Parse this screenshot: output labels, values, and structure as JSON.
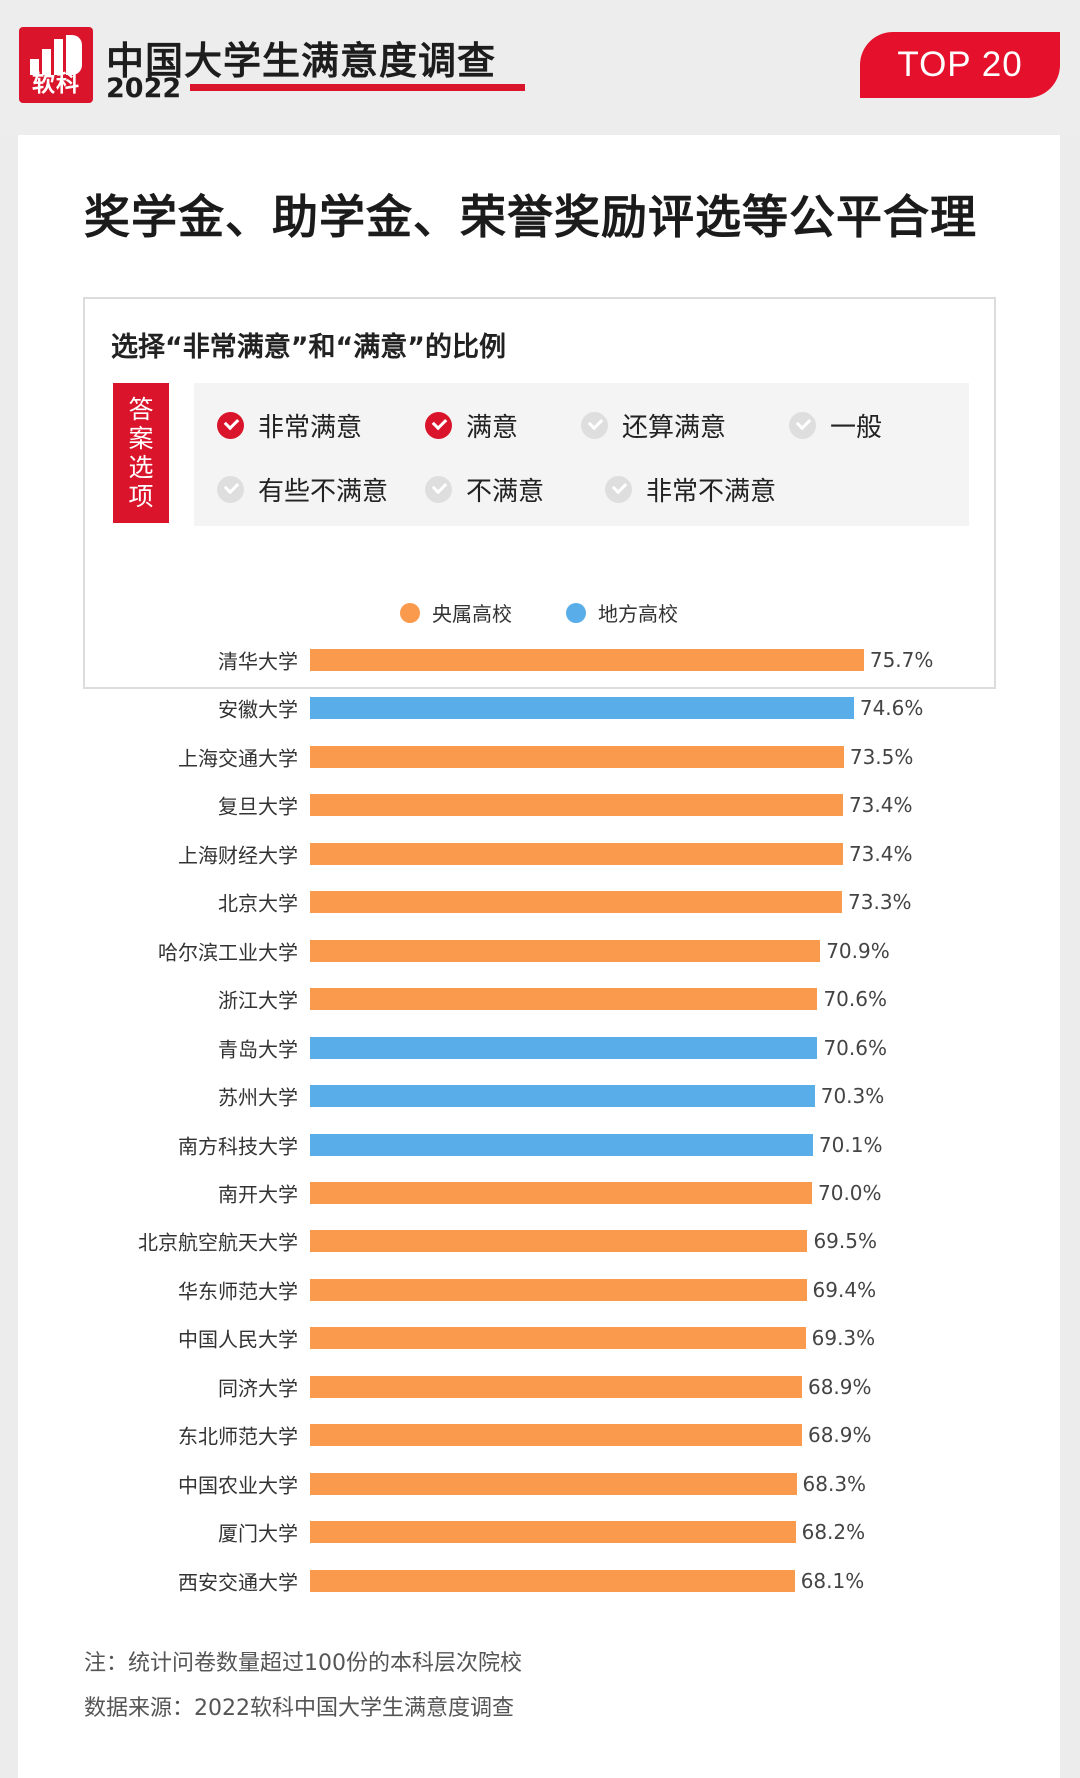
{
  "header": {
    "logo_text": "软科",
    "brand_title": "中国大学生满意度调查",
    "brand_year": "2022",
    "badge": "TOP 20"
  },
  "card": {
    "title": "奖学金、助学金、荣誉奖励评选等公平合理",
    "subtitle": "选择“非常满意”和“满意”的比例",
    "answer_tag": "答案选项",
    "options": [
      {
        "label": "非常满意",
        "selected": true
      },
      {
        "label": "满意",
        "selected": true
      },
      {
        "label": "还算满意",
        "selected": false
      },
      {
        "label": "一般",
        "selected": false
      },
      {
        "label": "有些不满意",
        "selected": false
      },
      {
        "label": "不满意",
        "selected": false
      },
      {
        "label": "非常不满意",
        "selected": false
      }
    ],
    "footnote": "注：统计问卷数量超过100份的本科层次院校",
    "source": "数据来源：2022软科中国大学生满意度调查"
  },
  "colors": {
    "accent": "#d9142b",
    "central": "#f99a4c",
    "local": "#59aee9"
  },
  "chart_data": {
    "type": "bar",
    "orientation": "horizontal",
    "legend": [
      {
        "name": "央属高校",
        "color": "#f99a4c"
      },
      {
        "name": "地方高校",
        "color": "#59aee9"
      }
    ],
    "legend_position": "top-center",
    "unit": "%",
    "grid": false,
    "categories": [
      "清华大学",
      "安徽大学",
      "上海交通大学",
      "复旦大学",
      "上海财经大学",
      "北京大学",
      "哈尔滨工业大学",
      "浙江大学",
      "青岛大学",
      "苏州大学",
      "南方科技大学",
      "南开大学",
      "北京航空航天大学",
      "华东师范大学",
      "中国人民大学",
      "同济大学",
      "东北师范大学",
      "中国农业大学",
      "厦门大学",
      "西安交通大学"
    ],
    "values": [
      75.7,
      74.6,
      73.5,
      73.4,
      73.4,
      73.3,
      70.9,
      70.6,
      70.6,
      70.3,
      70.1,
      70.0,
      69.5,
      69.4,
      69.3,
      68.9,
      68.9,
      68.3,
      68.2,
      68.1
    ],
    "value_labels": [
      "75.7%",
      "74.6%",
      "73.5%",
      "73.4%",
      "73.4%",
      "73.3%",
      "70.9%",
      "70.6%",
      "70.6%",
      "70.3%",
      "70.1%",
      "70.0%",
      "69.5%",
      "69.4%",
      "69.3%",
      "68.9%",
      "68.9%",
      "68.3%",
      "68.2%",
      "68.1%"
    ],
    "groups": [
      "央属高校",
      "地方高校",
      "央属高校",
      "央属高校",
      "央属高校",
      "央属高校",
      "央属高校",
      "央属高校",
      "地方高校",
      "地方高校",
      "地方高校",
      "央属高校",
      "央属高校",
      "央属高校",
      "央属高校",
      "央属高校",
      "央属高校",
      "央属高校",
      "央属高校",
      "央属高校"
    ]
  }
}
